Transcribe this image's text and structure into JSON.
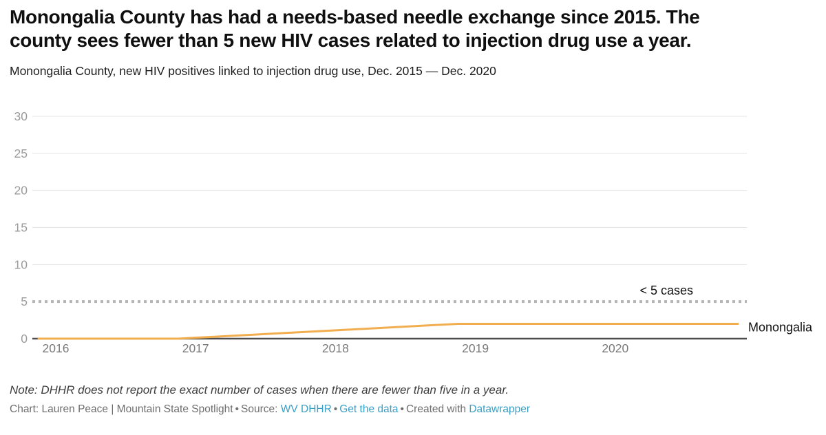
{
  "header": {
    "title_line1": "Monongalia County has had a needs-based needle exchange since 2015. The",
    "title_line2": "county sees fewer than 5 new HIV cases related to injection drug use a year.",
    "subtitle": "Monongalia County, new HIV positives linked to injection drug use, Dec. 2015 — Dec. 2020"
  },
  "chart_data": {
    "type": "line",
    "x": [
      "Dec. 2015",
      "Dec. 2016",
      "Dec. 2017",
      "Dec. 2018",
      "Dec. 2019",
      "Dec. 2020"
    ],
    "series": [
      {
        "name": "Monongalia",
        "values": [
          0,
          0,
          1,
          2,
          2,
          2
        ],
        "color": "#f2ad4e"
      }
    ],
    "x_tick_labels": [
      "2016",
      "2017",
      "2018",
      "2019",
      "2020"
    ],
    "y_ticks": [
      0,
      5,
      10,
      15,
      20,
      25,
      30
    ],
    "ylim": [
      0,
      30
    ],
    "grid": true,
    "legend_position": "right-of-line-end",
    "threshold": {
      "value": 5,
      "label": "< 5 cases",
      "style": "dotted",
      "color": "#b5b5b5"
    },
    "colors": {
      "gridline": "#e3e3e3",
      "baseline": "#4d4d4d",
      "y_tick_label": "#9b9b9b",
      "x_tick_label": "#7a7a7a",
      "annotation_text": "#111111"
    }
  },
  "footer": {
    "note": "Note: DHHR does not report the exact number of cases when there are fewer than five in a year.",
    "credit": "Chart: Lauren Peace | Mountain State Spotlight",
    "separator": "•",
    "source_label": "Source:",
    "source_link": "WV DHHR",
    "get_data_link": "Get the data",
    "created_with_label": "Created with",
    "datawrapper_link": "Datawrapper",
    "link_color": "#3aa0c6"
  }
}
